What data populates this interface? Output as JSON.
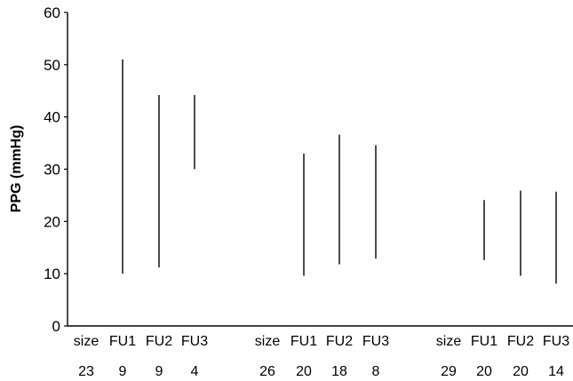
{
  "chart_data": {
    "type": "range",
    "ylabel": "PPG (mmHg)",
    "xlabel": "",
    "ylim": [
      0,
      60
    ],
    "yticks": [
      0,
      10,
      20,
      30,
      40,
      50,
      60
    ],
    "grid": false,
    "groups": [
      {
        "name": "size 23",
        "header_label": "size",
        "header_value": "23",
        "items": [
          {
            "label": "FU1",
            "n": "9",
            "low": 10,
            "high": 51
          },
          {
            "label": "FU2",
            "n": "9",
            "low": 11.2,
            "high": 44.2
          },
          {
            "label": "FU3",
            "n": "4",
            "low": 30,
            "high": 44.2
          }
        ]
      },
      {
        "name": "size 26",
        "header_label": "size",
        "header_value": "26",
        "items": [
          {
            "label": "FU1",
            "n": "20",
            "low": 9.6,
            "high": 33
          },
          {
            "label": "FU2",
            "n": "18",
            "low": 11.8,
            "high": 36.6
          },
          {
            "label": "FU3",
            "n": "8",
            "low": 12.9,
            "high": 34.6
          }
        ]
      },
      {
        "name": "size 29",
        "header_label": "size",
        "header_value": "29",
        "items": [
          {
            "label": "FU1",
            "n": "20",
            "low": 12.6,
            "high": 24.1
          },
          {
            "label": "FU2",
            "n": "20",
            "low": 9.6,
            "high": 25.9
          },
          {
            "label": "FU3",
            "n": "14",
            "low": 8.1,
            "high": 25.7
          }
        ]
      }
    ]
  },
  "colors": {
    "axis": "#000000",
    "line": "#000000"
  }
}
